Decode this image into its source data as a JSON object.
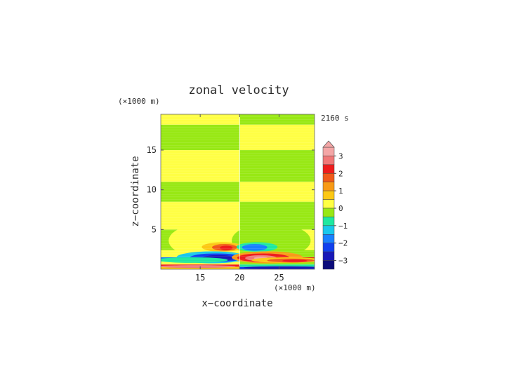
{
  "chart_data": {
    "type": "heatmap",
    "title": "zonal velocity",
    "time_label": "2160 s",
    "xlabel": "x−coordinate",
    "ylabel": "z−coordinate",
    "x_unit": "(×1000 m)",
    "y_unit": "(×1000 m)",
    "xlim": [
      10,
      29.5
    ],
    "ylim": [
      0,
      19.5
    ],
    "x_ticks": [
      15,
      20,
      25
    ],
    "y_ticks": [
      5,
      10,
      15
    ],
    "x_tick_labels": [
      "15",
      "20",
      "25"
    ],
    "y_tick_labels": [
      "5",
      "10",
      "15"
    ],
    "colorbar": {
      "ticks": [
        3,
        2,
        1,
        0,
        -1,
        -2,
        -3
      ],
      "tick_labels": [
        "3",
        "2",
        "1",
        "0",
        "−1",
        "−2",
        "−3"
      ],
      "extend": "max",
      "levels": [
        {
          "min": 3.0,
          "max": 3.5,
          "color": "#f4a6a6"
        },
        {
          "min": 2.5,
          "max": 3.0,
          "color": "#f07878"
        },
        {
          "min": 2.0,
          "max": 2.5,
          "color": "#ee1c1c"
        },
        {
          "min": 1.5,
          "max": 2.0,
          "color": "#f05a1a"
        },
        {
          "min": 1.0,
          "max": 1.5,
          "color": "#f89a16"
        },
        {
          "min": 0.5,
          "max": 1.0,
          "color": "#fcc814"
        },
        {
          "min": 0.0,
          "max": 0.5,
          "color": "#ffff44"
        },
        {
          "min": -0.5,
          "max": 0.0,
          "color": "#98e814"
        },
        {
          "min": -1.0,
          "max": -0.5,
          "color": "#1ee8a0"
        },
        {
          "min": -1.5,
          "max": -1.0,
          "color": "#18c8ec"
        },
        {
          "min": -2.0,
          "max": -1.5,
          "color": "#1880ff"
        },
        {
          "min": -2.5,
          "max": -2.0,
          "color": "#1040ee"
        },
        {
          "min": -3.0,
          "max": -2.5,
          "color": "#1818b8"
        },
        {
          "min": -3.5,
          "max": -3.0,
          "color": "#0c0c7a"
        }
      ]
    },
    "field": {
      "symmetry_x": 20,
      "bands_left": [
        {
          "z": [
            0.0,
            0.3
          ],
          "value": 0.75
        },
        {
          "z": [
            0.3,
            0.6
          ],
          "value": 2.2
        },
        {
          "z": [
            0.6,
            1.0
          ],
          "value": 0.25
        },
        {
          "z": [
            1.0,
            1.5
          ],
          "value": -2.0
        },
        {
          "z": [
            1.5,
            2.4
          ],
          "value": 0.25
        },
        {
          "z": [
            2.4,
            5.0
          ],
          "value": -0.25
        },
        {
          "z": [
            5.0,
            8.5
          ],
          "value": 0.25
        },
        {
          "z": [
            8.5,
            11.0
          ],
          "value": -0.25
        },
        {
          "z": [
            11.0,
            15.0
          ],
          "value": 0.25
        },
        {
          "z": [
            15.0,
            18.2
          ],
          "value": -0.25
        },
        {
          "z": [
            18.2,
            19.5
          ],
          "value": 0.25
        }
      ],
      "bands_right": [
        {
          "z": [
            0.0,
            0.3
          ],
          "value": -2.2
        },
        {
          "z": [
            0.3,
            0.6
          ],
          "value": -0.75
        },
        {
          "z": [
            0.6,
            1.0
          ],
          "value": -0.25
        },
        {
          "z": [
            1.0,
            1.5
          ],
          "value": 2.2
        },
        {
          "z": [
            1.5,
            2.4
          ],
          "value": -0.25
        },
        {
          "z": [
            2.4,
            5.0
          ],
          "value": 0.25
        },
        {
          "z": [
            5.0,
            8.5
          ],
          "value": -0.25
        },
        {
          "z": [
            8.5,
            11.0
          ],
          "value": 0.25
        },
        {
          "z": [
            11.0,
            15.0
          ],
          "value": -0.25
        },
        {
          "z": [
            15.0,
            18.2
          ],
          "value": 0.25
        },
        {
          "z": [
            18.2,
            19.5
          ],
          "value": -0.25
        }
      ],
      "features": [
        {
          "kind": "ellipse",
          "cx": 16.0,
          "cz": 3.6,
          "rx": 5.0,
          "rz": 2.2,
          "value": 0.25
        },
        {
          "kind": "ellipse",
          "cx": 24.0,
          "cz": 3.6,
          "rx": 5.0,
          "rz": 2.2,
          "value": -0.25
        },
        {
          "kind": "ellipse",
          "cx": 18.0,
          "cz": 5.5,
          "rx": 1.6,
          "rz": 0.8,
          "value": 0.25
        },
        {
          "kind": "ellipse",
          "cx": 22.0,
          "cz": 5.5,
          "rx": 1.6,
          "rz": 0.8,
          "value": -0.25
        },
        {
          "kind": "ellipse",
          "cx": 17.8,
          "cz": 2.8,
          "rx": 2.6,
          "rz": 0.6,
          "value": 0.75
        },
        {
          "kind": "ellipse",
          "cx": 18.1,
          "cz": 2.75,
          "rx": 1.6,
          "rz": 0.42,
          "value": 1.75
        },
        {
          "kind": "ellipse",
          "cx": 18.3,
          "cz": 2.7,
          "rx": 0.8,
          "rz": 0.28,
          "value": 2.25
        },
        {
          "kind": "ellipse",
          "cx": 22.2,
          "cz": 2.8,
          "rx": 2.6,
          "rz": 0.6,
          "value": -0.75
        },
        {
          "kind": "ellipse",
          "cx": 21.9,
          "cz": 2.75,
          "rx": 1.6,
          "rz": 0.42,
          "value": -1.75
        },
        {
          "kind": "ellipse",
          "cx": 16.5,
          "cz": 1.5,
          "rx": 4.5,
          "rz": 0.75,
          "value": -1.25
        },
        {
          "kind": "ellipse",
          "cx": 17.0,
          "cz": 1.45,
          "rx": 3.3,
          "rz": 0.55,
          "value": -2.25
        },
        {
          "kind": "ellipse",
          "cx": 17.3,
          "cz": 1.4,
          "rx": 2.0,
          "rz": 0.38,
          "value": -2.75
        },
        {
          "kind": "ellipse",
          "cx": 23.5,
          "cz": 1.5,
          "rx": 4.5,
          "rz": 0.75,
          "value": 1.25
        },
        {
          "kind": "ellipse",
          "cx": 23.0,
          "cz": 1.45,
          "rx": 3.3,
          "rz": 0.55,
          "value": 2.25
        },
        {
          "kind": "ellipse",
          "cx": 22.7,
          "cz": 1.4,
          "rx": 2.0,
          "rz": 0.38,
          "value": 2.75
        },
        {
          "kind": "ellipse",
          "cx": 22.7,
          "cz": 1.4,
          "rx": 0.9,
          "rz": 0.18,
          "value": 3.25
        },
        {
          "kind": "ellipse",
          "cx": 14.0,
          "cz": 1.15,
          "rx": 4.5,
          "rz": 0.35,
          "value": -0.75
        },
        {
          "kind": "ellipse",
          "cx": 26.0,
          "cz": 1.15,
          "rx": 4.5,
          "rz": 0.35,
          "value": 0.75
        },
        {
          "kind": "ellipse",
          "cx": 26.5,
          "cz": 1.1,
          "rx": 3.0,
          "rz": 0.25,
          "value": 1.75
        },
        {
          "kind": "ellipse",
          "cx": 27.0,
          "cz": 1.05,
          "rx": 1.6,
          "rz": 0.18,
          "value": 2.25
        },
        {
          "kind": "ellipse",
          "cx": 14.5,
          "cz": 0.35,
          "rx": 5.0,
          "rz": 0.18,
          "value": 2.75
        },
        {
          "kind": "ellipse",
          "cx": 25.5,
          "cz": 0.2,
          "rx": 5.0,
          "rz": 0.18,
          "value": -2.75
        }
      ]
    }
  }
}
